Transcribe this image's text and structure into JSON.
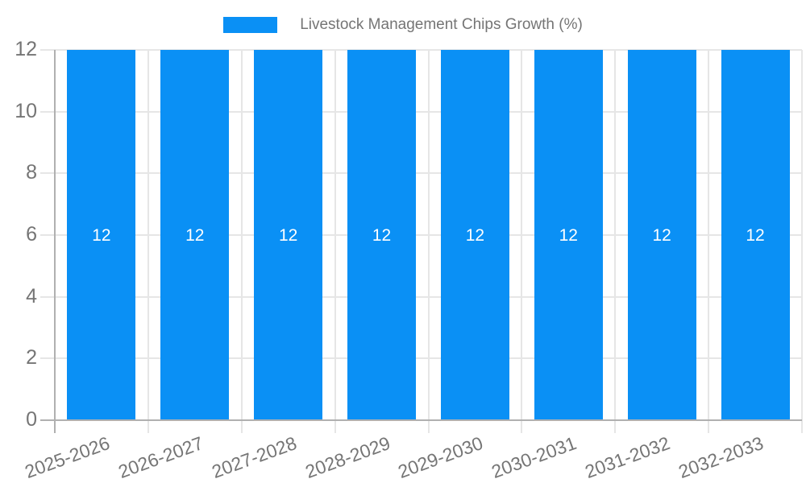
{
  "chart_data": {
    "type": "bar",
    "title": "Livestock Management Chips Growth (%)",
    "categories": [
      "2025-2026",
      "2026-2027",
      "2027-2028",
      "2028-2029",
      "2029-2030",
      "2030-2031",
      "2031-2032",
      "2032-2033"
    ],
    "series": [
      {
        "name": "Livestock Management Chips Growth (%)",
        "values": [
          12,
          12,
          12,
          12,
          12,
          12,
          12,
          12
        ],
        "bar_labels": [
          "12",
          "12",
          "12",
          "12",
          "12",
          "12",
          "12",
          "12"
        ]
      }
    ],
    "xlabel": "",
    "ylabel": "",
    "ylim": [
      0,
      12
    ],
    "yticks": [
      0,
      2,
      4,
      6,
      8,
      10,
      12
    ],
    "ytick_labels": [
      "0",
      "2",
      "4",
      "6",
      "8",
      "10",
      "12"
    ],
    "grid": true,
    "legend_position": "top-center",
    "colors": {
      "bar": "#0a90f5",
      "axis_text": "#757575",
      "bar_label_text": "#ffffff",
      "gridline": "#e6e6e6",
      "axis_line": "#b0b0b0",
      "background": "#ffffff"
    }
  }
}
